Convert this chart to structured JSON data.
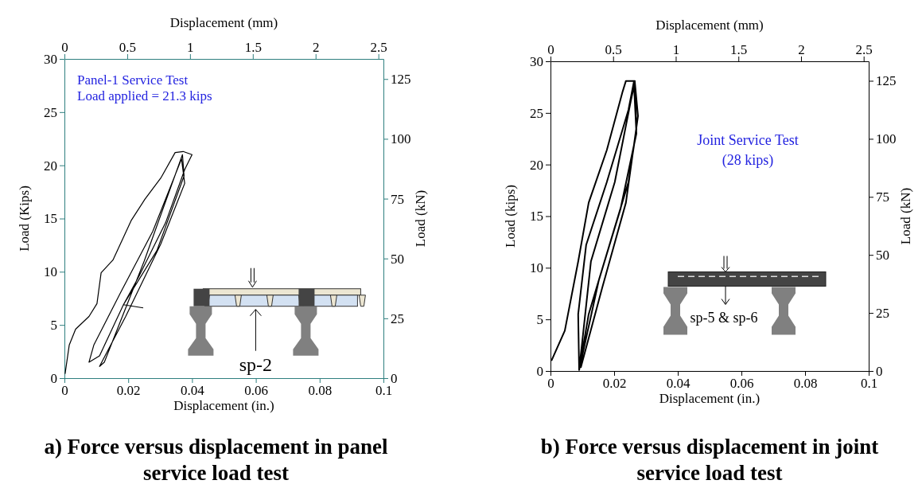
{
  "chart_data": [
    {
      "type": "line",
      "title": "a) Force versus displacement in panel service load test",
      "xlabel": "Displacement (in.)",
      "ylabel": "Load (Kips)",
      "y2label": "Load (kN)",
      "x2label": "Displacement (mm)",
      "annotations": [
        "Panel-1 Service Test",
        "Load applied = 21.3 kips",
        "sp-2"
      ],
      "xlim": [
        0,
        0.1
      ],
      "xticks": [
        0,
        0.02,
        0.04,
        0.06,
        0.08,
        0.1
      ],
      "ylim": [
        0,
        30
      ],
      "yticks": [
        0,
        5,
        10,
        15,
        20,
        25,
        30
      ],
      "x2lim": [
        0,
        2.54
      ],
      "x2ticks": [
        0,
        0.5,
        1,
        1.5,
        2,
        2.5
      ],
      "y2lim": [
        0,
        133.4
      ],
      "y2ticks": [
        0,
        25,
        50,
        75,
        100,
        125
      ],
      "series": [
        {
          "color": "#000000",
          "x": [
            0.0002,
            0.0015,
            0.0035,
            0.0077,
            0.0102,
            0.0115,
            0.0152,
            0.0209,
            0.0252,
            0.0302,
            0.0347,
            0.0372,
            0.04,
            0.0377,
            0.0317,
            0.0234,
            0.0185,
            0.011,
            0.0077,
            0.0092,
            0.0177,
            0.0277,
            0.0367,
            0.0377,
            0.0302,
            0.0192,
            0.011,
            0.0125,
            0.025,
            0.037,
            0.0375,
            0.029,
            0.0185,
            0.0247
          ],
          "values": [
            0.4,
            3.1,
            4.6,
            5.8,
            7.0,
            9.9,
            11.1,
            14.8,
            16.8,
            18.8,
            21.2,
            21.3,
            21.0,
            19.6,
            14.6,
            9.6,
            6.9,
            2.1,
            1.5,
            3.1,
            8.1,
            13.8,
            20.6,
            18.3,
            12.6,
            5.8,
            1.1,
            1.5,
            11.0,
            21.0,
            19.0,
            12.0,
            6.9,
            6.6
          ]
        }
      ]
    },
    {
      "type": "line",
      "title": "b) Force versus displacement in joint service load test",
      "xlabel": "Displacement (in.)",
      "ylabel": "Load (kips)",
      "y2label": "Load (kN)",
      "x2label": "Displacement (mm)",
      "annotations": [
        "Joint Service Test",
        "(28 kips)",
        "sp-5  & sp-6"
      ],
      "xlim": [
        0,
        0.1
      ],
      "xticks": [
        0,
        0.02,
        0.04,
        0.06,
        0.08,
        0.1
      ],
      "ylim": [
        0,
        30
      ],
      "yticks": [
        0,
        5,
        10,
        15,
        20,
        25,
        30
      ],
      "x2lim": [
        0,
        2.54
      ],
      "x2ticks": [
        0,
        0.5,
        1,
        1.5,
        2,
        2.5
      ],
      "y2lim": [
        0,
        133.4
      ],
      "y2ticks": [
        0,
        25,
        50,
        75,
        100,
        125
      ],
      "series": [
        {
          "color": "#000000",
          "x": [
            0.0003,
            0.0045,
            0.0087,
            0.012,
            0.0177,
            0.0227,
            0.0237,
            0.0265,
            0.027,
            0.0245,
            0.0195,
            0.0152,
            0.012,
            0.009,
            0.0087,
            0.0112,
            0.0177,
            0.0245,
            0.0262,
            0.027,
            0.022,
            0.0152,
            0.009,
            0.01,
            0.0127,
            0.0202,
            0.0252,
            0.0265,
            0.0275,
            0.0237,
            0.0162,
            0.0095
          ],
          "values": [
            1.0,
            3.9,
            10.6,
            16.3,
            21.4,
            27.1,
            28.1,
            28.1,
            23.4,
            18.3,
            13.2,
            8.8,
            5.5,
            0.1,
            5.5,
            12.2,
            18.3,
            25.3,
            28.0,
            23.0,
            15.7,
            8.8,
            0.1,
            2.9,
            10.6,
            18.3,
            26.1,
            28.0,
            24.7,
            16.3,
            8.0,
            0.3
          ]
        }
      ]
    }
  ]
}
